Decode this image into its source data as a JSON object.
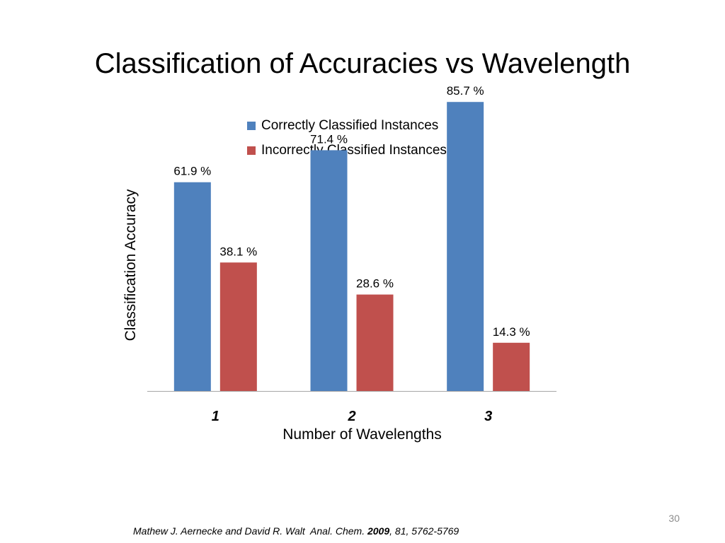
{
  "slide": {
    "title": "Classification of Accuracies vs Wavelength",
    "page_number": "30"
  },
  "citation": {
    "authors": "Mathew J. Aernecke and David R. Walt",
    "journal": "Anal. Chem.",
    "year": "2009",
    "details": ", 81, 5762-5769"
  },
  "colors": {
    "correct": "#4f81bd",
    "incorrect": "#c0504d",
    "axis": "#a6a6a6"
  },
  "chart_data": {
    "type": "bar",
    "title": "",
    "xlabel": "Number of Wavelengths",
    "ylabel": "Classification Accuracy",
    "categories": [
      "1",
      "2",
      "3"
    ],
    "ylim": [
      0,
      100
    ],
    "grid": false,
    "legend_position": "top",
    "series": [
      {
        "name": "Correctly Classified Instances",
        "values": [
          61.9,
          71.4,
          85.7
        ],
        "labels": [
          "61.9 %",
          "71.4 %",
          "85.7 %"
        ],
        "color": "#4f81bd"
      },
      {
        "name": "Incorrectly Classified Instances",
        "values": [
          38.1,
          28.6,
          14.3
        ],
        "labels": [
          "38.1 %",
          "28.6 %",
          "14.3 %"
        ],
        "color": "#c0504d"
      }
    ]
  }
}
